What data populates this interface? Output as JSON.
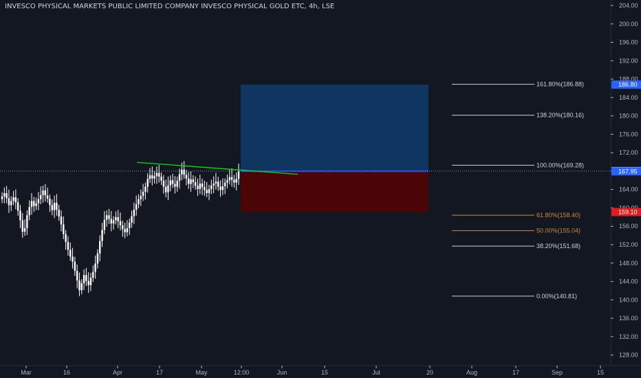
{
  "header": {
    "title": "INVESCO PHYSICAL MARKETS PUBLIC LIMITED COMPANY INVESCO PHYSICAL GOLD ETC, 4h, LSE"
  },
  "colors": {
    "background": "#131722",
    "candle": "#ffffff",
    "trendline": "#00e600",
    "reward_zone": "#0e3660",
    "risk_zone": "#4a0606",
    "entry_line": "#1e3cff",
    "fib_white": "#cfd3dc",
    "fib_orange": "#c98a3b",
    "axis_text": "#b2b5be",
    "price_tag_blue": "#2962ff",
    "price_tag_red": "#e01b1b",
    "price_tag_light": "#ffffff"
  },
  "chart_data": {
    "type": "candlestick",
    "x_tick_labels": [
      "Mar",
      "16",
      "Apr",
      "17",
      "May",
      "12:00",
      "Jun",
      "15",
      "Jul",
      "20",
      "Aug",
      "17",
      "Sep",
      "15"
    ],
    "y_tick_labels": [
      "128.00",
      "132.00",
      "136.00",
      "140.00",
      "144.00",
      "148.00",
      "152.00",
      "156.00",
      "160.00",
      "164.00",
      "168.00",
      "172.00",
      "176.00",
      "180.00",
      "184.00",
      "188.00",
      "192.00",
      "196.00",
      "200.00",
      "204.00"
    ],
    "ylim": [
      125.7,
      205.2
    ],
    "close_path_approx": [
      [
        162.5,
        163.2,
        162.1,
        160.6,
        161.5,
        162.3,
        161.2,
        159.4,
        157.3,
        154.8,
        155.6,
        158.4,
        160.2,
        161.5,
        160.4,
        161.0,
        161.9,
        162.8,
        163.8,
        162.7,
        162.0,
        160.6,
        159.5,
        161.1,
        159.6,
        158.1,
        156.4,
        154.3,
        152.6,
        150.9,
        149.4,
        148.3,
        146.3,
        144.2,
        142.1,
        143.6,
        145.4,
        144.1,
        143.2,
        144.8,
        146.1,
        147.9,
        150.1,
        152.8,
        155.2,
        157.4,
        158.4,
        157.6,
        156.6,
        157.3,
        158.0,
        157.1,
        156.2,
        155.4,
        154.7,
        155.6,
        156.8,
        158.2,
        159.6,
        160.8,
        161.9,
        162.6,
        163.5,
        164.6,
        166.3,
        167.1,
        166.4,
        166.9,
        167.6,
        166.8,
        165.9,
        164.6,
        163.4,
        164.9,
        166.0,
        165.2,
        164.6,
        165.9,
        167.3,
        168.3,
        167.2,
        166.4,
        165.2,
        166.2,
        165.6,
        164.8,
        164.1,
        165.3,
        164.5,
        163.9,
        163.2,
        164.1,
        164.9,
        165.3,
        165.7,
        164.6,
        163.9,
        164.7,
        165.5,
        166.0,
        166.7,
        166.1,
        165.5,
        166.3,
        167.9
      ]
    ],
    "trendline": {
      "start_x": "Apr 8",
      "start_price": 169.9,
      "end_x": "Jun 6",
      "end_price": 167.3
    },
    "position": {
      "entry": 167.95,
      "target": 186.8,
      "stop": 159.1
    },
    "fib_levels": [
      {
        "label": "161.80%(186.88)",
        "value": 186.88,
        "color": "white"
      },
      {
        "label": "138.20%(180.16)",
        "value": 180.16,
        "color": "white"
      },
      {
        "label": "100.00%(169.28)",
        "value": 169.28,
        "color": "white"
      },
      {
        "label": "61.80%(158.40)",
        "value": 158.4,
        "color": "orange"
      },
      {
        "label": "50.00%(155.04)",
        "value": 155.04,
        "color": "orange"
      },
      {
        "label": "38.20%(151.68)",
        "value": 151.68,
        "color": "white"
      },
      {
        "label": "0.00%(140.81)",
        "value": 140.81,
        "color": "white"
      }
    ],
    "price_tags": [
      {
        "label": "186.80",
        "value": 186.8,
        "style": "blue"
      },
      {
        "label": "168.00",
        "value": 168.0,
        "style": "light"
      },
      {
        "label": "167.95",
        "value": 167.95,
        "style": "blue"
      },
      {
        "label": "159.10",
        "value": 159.1,
        "style": "red"
      }
    ],
    "current_price_line": 168.0
  }
}
